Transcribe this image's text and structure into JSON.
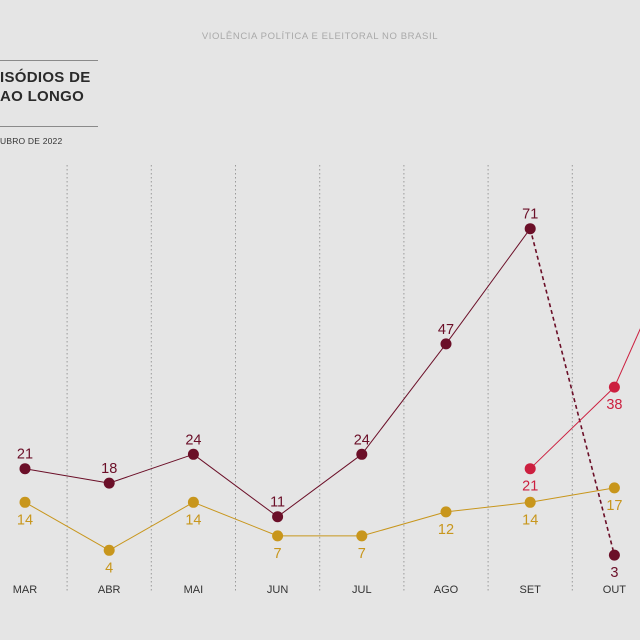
{
  "header": {
    "top_title": "VIOLÊNCIA POLÍTICA E ELEITORAL NO BRASIL",
    "headline_line1": "ISÓDIOS DE",
    "headline_line2": "AO LONGO",
    "subtitle": "UBRO DE 2022"
  },
  "colors": {
    "background": "#e5e5e5",
    "series_main": "#6b0f28",
    "series_gold": "#c8961c",
    "series_red": "#cc1f3f",
    "gridline": "#9a9a9a"
  },
  "chart_data": {
    "type": "line",
    "categories": [
      "MAR",
      "ABR",
      "MAI",
      "JUN",
      "JUL",
      "AGO",
      "SET",
      "OUT"
    ],
    "series": [
      {
        "key": "main",
        "color": "#6b0f28",
        "values": [
          21,
          18,
          24,
          11,
          24,
          47,
          71,
          3
        ],
        "dashed_last_segment": true,
        "label_position": "above"
      },
      {
        "key": "gold",
        "color": "#c8961c",
        "values": [
          14,
          4,
          14,
          7,
          7,
          12,
          14,
          17
        ],
        "label_position": "below"
      },
      {
        "key": "red",
        "color": "#cc1f3f",
        "values": [
          null,
          null,
          null,
          null,
          null,
          null,
          21,
          38
        ],
        "label_position": "below"
      }
    ],
    "gridlines": "vertical dotted",
    "legend": "none"
  }
}
